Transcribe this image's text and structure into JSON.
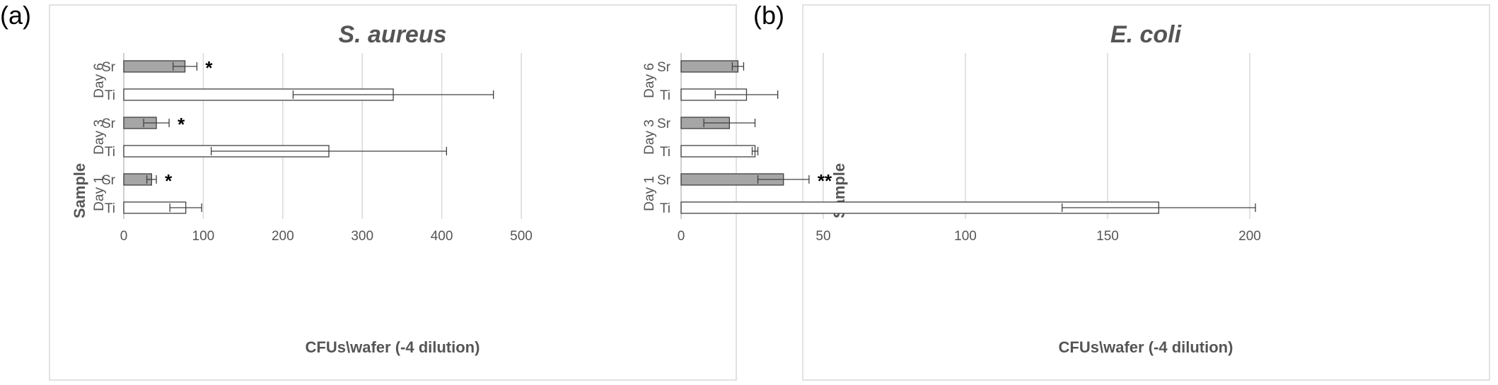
{
  "chart_data": [
    {
      "panel_label": "(a)",
      "type": "bar",
      "orientation": "horizontal",
      "title": "S. aureus",
      "xlabel": "CFUs\\wafer (-4 dilution)",
      "ylabel": "Sample",
      "xlim": [
        0,
        500
      ],
      "xticks": [
        "0",
        "100",
        "200",
        "300",
        "400",
        "500"
      ],
      "grid": true,
      "groups": [
        "Day 1",
        "Day 3",
        "Day 6"
      ],
      "series": [
        {
          "key": "Ti",
          "label": "Ti",
          "color": "#ffffff",
          "values": [
            78,
            258,
            339
          ],
          "errors": [
            20,
            148,
            126
          ]
        },
        {
          "key": "Sr",
          "label": "Sr",
          "color": "#a6a6a6",
          "values": [
            35,
            41,
            77
          ],
          "errors": [
            6,
            16,
            15
          ]
        }
      ],
      "annotations": [
        {
          "group": "Day 1",
          "series": "Sr",
          "text": "*"
        },
        {
          "group": "Day 3",
          "series": "Sr",
          "text": "*"
        },
        {
          "group": "Day 6",
          "series": "Sr",
          "text": "*"
        }
      ]
    },
    {
      "panel_label": "(b)",
      "type": "bar",
      "orientation": "horizontal",
      "title": "E. coli",
      "xlabel": "CFUs\\wafer (-4 dilution)",
      "ylabel": "Sample",
      "xlim": [
        0,
        200
      ],
      "xticks": [
        "0",
        "50",
        "100",
        "150",
        "200"
      ],
      "grid": true,
      "groups": [
        "Day 1",
        "Day 3",
        "Day 6"
      ],
      "series": [
        {
          "key": "Ti",
          "label": "Ti",
          "color": "#ffffff",
          "values": [
            168,
            26,
            23
          ],
          "errors": [
            34,
            1,
            11
          ]
        },
        {
          "key": "Sr",
          "label": "Sr",
          "color": "#a6a6a6",
          "values": [
            36,
            17,
            20
          ],
          "errors": [
            9,
            9,
            2
          ]
        }
      ],
      "annotations": [
        {
          "group": "Day 1",
          "series": "Sr",
          "text": "**"
        }
      ]
    }
  ]
}
